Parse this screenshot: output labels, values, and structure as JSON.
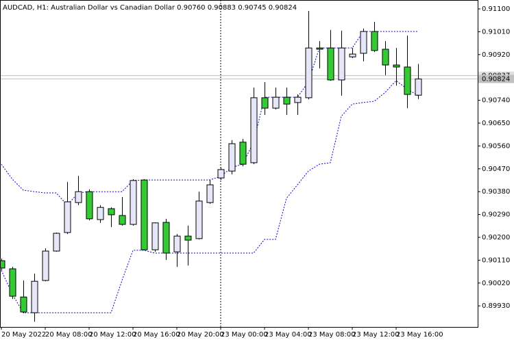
{
  "chart_data": {
    "type": "candlestick",
    "title": "AUDCAD, H1:  Australian Dollar vs Canadian Dollar  0.90760 0.90883 0.90745 0.90824",
    "categories": [
      "20 May 2022",
      null,
      null,
      null,
      "20 May 08:00",
      null,
      null,
      null,
      "20 May 12:00",
      null,
      null,
      null,
      "20 May 16:00",
      null,
      null,
      null,
      "20 May 20:00",
      null,
      null,
      null,
      "23 May 00:00",
      null,
      null,
      null,
      "23 May 04:00",
      null,
      null,
      null,
      "23 May 08:00",
      null,
      null,
      null,
      "23 May 12:00",
      null,
      null,
      null,
      "23 May 16:00",
      null,
      null
    ],
    "open": [
      0.90108,
      0.90076,
      0.89965,
      0.89903,
      0.9003,
      0.90146,
      0.90219,
      0.90337,
      0.9038,
      0.9027,
      0.90313,
      0.90286,
      0.90251,
      0.90426,
      0.90151,
      0.90259,
      0.90143,
      0.90205,
      0.90195,
      0.90337,
      0.90434,
      0.90461,
      0.90575,
      0.90494,
      0.9075,
      0.90709,
      0.90752,
      0.90731,
      0.9075,
      0.90946,
      0.90946,
      0.9082,
      0.90911,
      0.90925,
      0.91011,
      0.90941,
      0.90879,
      0.90871,
      0.9076
    ],
    "high": [
      0.90116,
      0.90084,
      0.9003,
      0.90057,
      0.90157,
      0.90219,
      0.90418,
      0.90442,
      0.90389,
      0.90327,
      0.90318,
      0.90359,
      0.90429,
      0.90429,
      0.90259,
      0.90273,
      0.90213,
      0.90246,
      0.9038,
      0.90426,
      0.90475,
      0.90583,
      0.90588,
      0.9079,
      0.90812,
      0.9079,
      0.9079,
      0.90763,
      0.91092,
      0.90973,
      0.91017,
      0.91014,
      0.90946,
      0.91022,
      0.91049,
      0.90973,
      0.90946,
      0.90995,
      0.90883
    ],
    "low": [
      0.9007,
      0.89957,
      0.89901,
      0.89868,
      0.90027,
      0.90143,
      0.90213,
      0.90327,
      0.90267,
      0.90257,
      0.9024,
      0.90246,
      0.90246,
      0.90149,
      0.90143,
      0.90111,
      0.90084,
      0.90089,
      0.90192,
      0.90332,
      0.90426,
      0.90448,
      0.9048,
      0.90488,
      0.90682,
      0.90704,
      0.90682,
      0.90682,
      0.90744,
      0.90866,
      0.90817,
      0.90758,
      0.90906,
      0.90893,
      0.9093,
      0.90839,
      0.90798,
      0.90709,
      0.90745
    ],
    "close": [
      0.90079,
      0.89968,
      0.89906,
      0.90027,
      0.90146,
      0.90216,
      0.9034,
      0.9038,
      0.90273,
      0.90318,
      0.90289,
      0.90251,
      0.90424,
      0.90151,
      0.90257,
      0.90138,
      0.90205,
      0.90189,
      0.90343,
      0.90407,
      0.90467,
      0.90569,
      0.90488,
      0.9075,
      0.90709,
      0.90752,
      0.90725,
      0.90752,
      0.90946,
      0.90941,
      0.9082,
      0.90946,
      0.90922,
      0.91011,
      0.90936,
      0.90879,
      0.90871,
      0.90763,
      0.90824
    ],
    "up_color": "#e6e6fa",
    "down_color": "#32cd32",
    "lines": [
      {
        "color": "#0000cd",
        "values": [
          0.90488,
          0.90429,
          0.90386,
          0.9038,
          0.90375,
          0.90375,
          0.90327,
          0.90375,
          0.9038,
          0.9038,
          0.9038,
          0.9038,
          0.90424,
          0.90426,
          0.90426,
          0.90426,
          0.90426,
          0.90426,
          0.90426,
          0.90426,
          0.9044,
          0.90475,
          0.90488,
          0.90575,
          0.90752,
          0.90752,
          0.90752,
          0.90752,
          0.90812,
          0.90946,
          0.90946,
          0.90946,
          0.90946,
          0.91011,
          0.91011,
          0.91011,
          0.91011,
          0.91011,
          0.91011
        ]
      },
      {
        "color": "#0000cd",
        "values": [
          0.9007,
          0.89976,
          0.89903,
          0.89903,
          0.89903,
          0.89903,
          0.89903,
          0.89903,
          0.89903,
          0.89903,
          0.89903,
          0.9003,
          0.90149,
          0.90149,
          0.90138,
          0.90138,
          0.90138,
          0.90138,
          0.90138,
          0.90138,
          0.90138,
          0.90138,
          0.90138,
          0.90138,
          0.90192,
          0.90192,
          0.90354,
          0.90407,
          0.90461,
          0.90488,
          0.90494,
          0.90677,
          0.90725,
          0.90731,
          0.90736,
          0.90771,
          0.90817,
          0.90785,
          0.90758
        ]
      }
    ],
    "price_lines": [
      0.90837,
      0.90824
    ],
    "ylim": [
      0.89847,
      0.91135
    ],
    "yticks": [
      {
        "value": 0.911,
        "label": "0.91100"
      },
      {
        "value": 0.9101,
        "label": "0.91010"
      },
      {
        "value": 0.9092,
        "label": "0.90920"
      },
      {
        "value": 0.9074,
        "label": "0.90740"
      },
      {
        "value": 0.9065,
        "label": "0.90650"
      },
      {
        "value": 0.9056,
        "label": "0.90560"
      },
      {
        "value": 0.9047,
        "label": "0.90470"
      },
      {
        "value": 0.9038,
        "label": "0.90380"
      },
      {
        "value": 0.9029,
        "label": "0.90290"
      },
      {
        "value": 0.902,
        "label": "0.90200"
      },
      {
        "value": 0.9011,
        "label": "0.90110"
      },
      {
        "value": 0.9002,
        "label": "0.90020"
      },
      {
        "value": 0.8993,
        "label": "0.89930"
      }
    ]
  }
}
